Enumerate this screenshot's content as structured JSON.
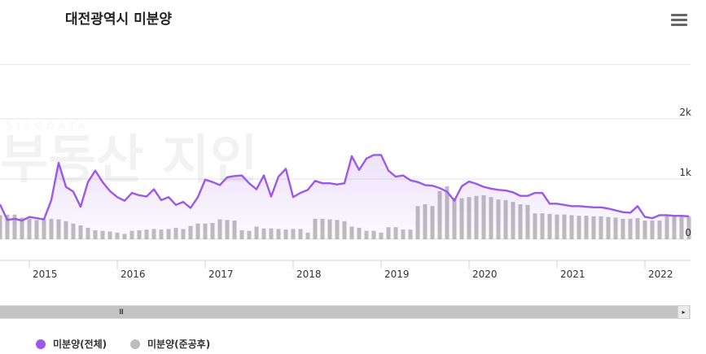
{
  "title": "대전광역시 미분양",
  "menu_icon": "hamburger-icon",
  "scrollbar": {
    "grip": "III",
    "right_arrow": "▸"
  },
  "watermark": {
    "sub": "SISODATA",
    "main": "부동산 지인"
  },
  "legend": [
    {
      "label": "미분양(전체)",
      "color": "#9b59ec"
    },
    {
      "label": "미분양(준공후)",
      "color": "#bdbdbd"
    }
  ],
  "chart_data": {
    "type": "line",
    "title": "대전광역시 미분양",
    "x_start": "2014-09",
    "x_end": "2022-05",
    "year_ticks": [
      "2015",
      "2016",
      "2017",
      "2018",
      "2019",
      "2020",
      "2021",
      "2022"
    ],
    "y_ticks": [
      {
        "value": 0,
        "label": "0"
      },
      {
        "value": 1000,
        "label": "1k"
      },
      {
        "value": 2000,
        "label": "2k"
      }
    ],
    "ylim": [
      0,
      2900
    ],
    "grid": true,
    "legend_position": "bottom-left",
    "series": [
      {
        "name": "미분양(전체)",
        "type": "area-line",
        "color": "#9b59ec",
        "values": [
          580,
          320,
          340,
          310,
          370,
          350,
          330,
          650,
          1270,
          870,
          790,
          540,
          950,
          1140,
          950,
          800,
          700,
          640,
          770,
          730,
          710,
          830,
          650,
          700,
          570,
          620,
          520,
          700,
          990,
          950,
          900,
          1030,
          1050,
          1060,
          930,
          830,
          1060,
          710,
          1040,
          1170,
          700,
          770,
          820,
          970,
          930,
          930,
          910,
          930,
          1380,
          1150,
          1340,
          1400,
          1400,
          1140,
          1040,
          1060,
          980,
          950,
          900,
          890,
          850,
          790,
          640,
          880,
          960,
          920,
          870,
          840,
          820,
          810,
          780,
          720,
          720,
          770,
          770,
          590,
          590,
          570,
          550,
          550,
          540,
          530,
          530,
          510,
          480,
          450,
          440,
          550,
          370,
          350,
          400,
          400,
          390,
          390,
          380
        ]
      },
      {
        "name": "미분양(준공후)",
        "type": "bar",
        "color": "#bdbdbd",
        "values": [
          400,
          410,
          410,
          360,
          340,
          320,
          330,
          340,
          330,
          300,
          260,
          230,
          190,
          150,
          140,
          130,
          110,
          90,
          140,
          150,
          160,
          170,
          160,
          170,
          190,
          170,
          220,
          260,
          260,
          270,
          330,
          320,
          310,
          150,
          140,
          210,
          180,
          180,
          170,
          160,
          170,
          170,
          110,
          340,
          340,
          330,
          320,
          300,
          210,
          190,
          140,
          140,
          110,
          200,
          200,
          160,
          160,
          550,
          580,
          550,
          800,
          880,
          690,
          680,
          700,
          720,
          730,
          700,
          660,
          650,
          620,
          580,
          570,
          430,
          430,
          420,
          410,
          410,
          400,
          390,
          390,
          380,
          380,
          370,
          360,
          340,
          340,
          350,
          310,
          310,
          310,
          400,
          400,
          390,
          380
        ]
      }
    ]
  }
}
